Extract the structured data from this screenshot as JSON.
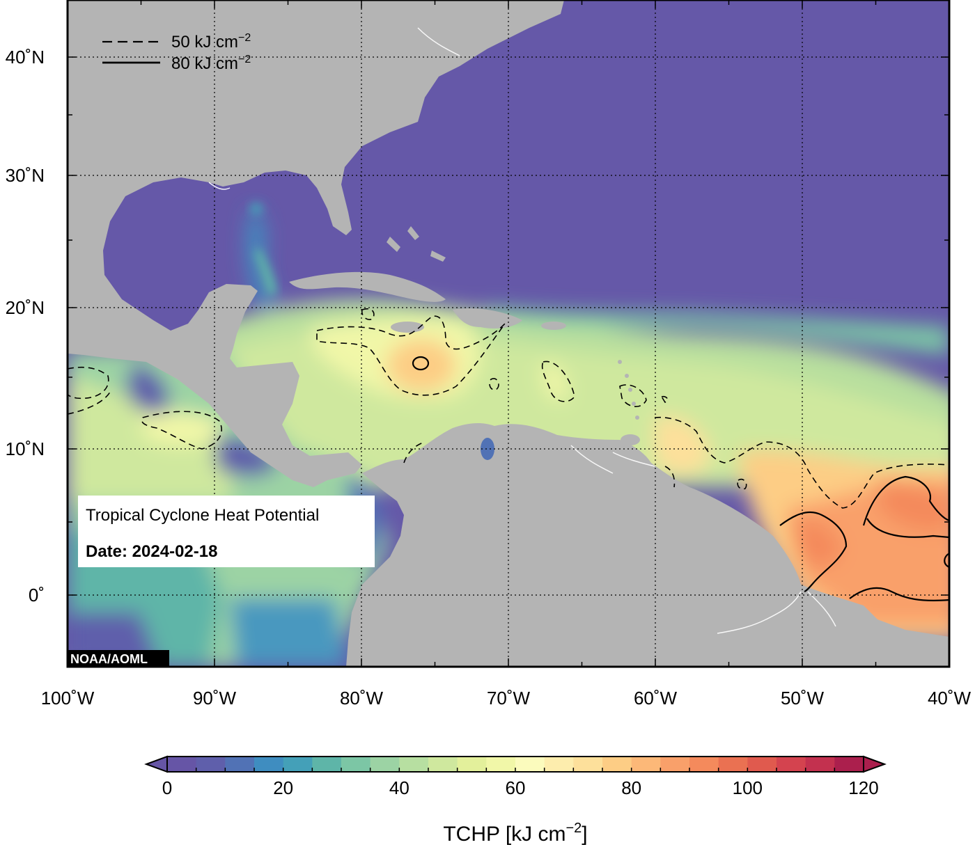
{
  "map": {
    "title": "Tropical Cyclone Heat Potential",
    "date_text": "Date: 2024-02-18",
    "credit": "NOAA/AOML",
    "lat_ticks": [
      {
        "value": 40,
        "label": "40˚N"
      },
      {
        "value": 30,
        "label": "30˚N"
      },
      {
        "value": 20,
        "label": "20˚N"
      },
      {
        "value": 10,
        "label": "10˚N"
      },
      {
        "value": 0,
        "label": "0˚"
      }
    ],
    "lon_ticks": [
      {
        "value": -100,
        "label": "100˚W"
      },
      {
        "value": -90,
        "label": "90˚W"
      },
      {
        "value": -80,
        "label": "80˚W"
      },
      {
        "value": -70,
        "label": "70˚W"
      },
      {
        "value": -60,
        "label": "60˚W"
      },
      {
        "value": -50,
        "label": "50˚W"
      },
      {
        "value": -40,
        "label": "40˚W"
      }
    ],
    "extent": {
      "lon_min": -100,
      "lon_max": -40,
      "lat_min": -5,
      "lat_max": 44
    },
    "legend": {
      "dashed_label": "50 kJ cm",
      "solid_label": "80 kJ cm",
      "exponent": "−2"
    },
    "colors": {
      "land": "#b4b4b4",
      "ocean_low": "#6558a8"
    }
  },
  "colorbar": {
    "title_main": "TCHP [kJ cm",
    "title_exp": "−2",
    "title_end": "]",
    "ticks": [
      "0",
      "20",
      "40",
      "60",
      "80",
      "100",
      "120"
    ],
    "min": 0,
    "max": 120,
    "step": 5,
    "colors": [
      "#6655a6",
      "#5f5fab",
      "#5172b5",
      "#3f8dc0",
      "#44a0b8",
      "#5eb5a8",
      "#7cc6a5",
      "#9cd3a4",
      "#b7dfa1",
      "#cfe89e",
      "#e3f09b",
      "#f1f7a8",
      "#fbfbbd",
      "#fdedad",
      "#fde09b",
      "#fdcd85",
      "#fcb878",
      "#f9a06a",
      "#f48a5c",
      "#ea7152",
      "#e05a4e",
      "#d4434f",
      "#c3314f",
      "#ab1f4d"
    ]
  }
}
